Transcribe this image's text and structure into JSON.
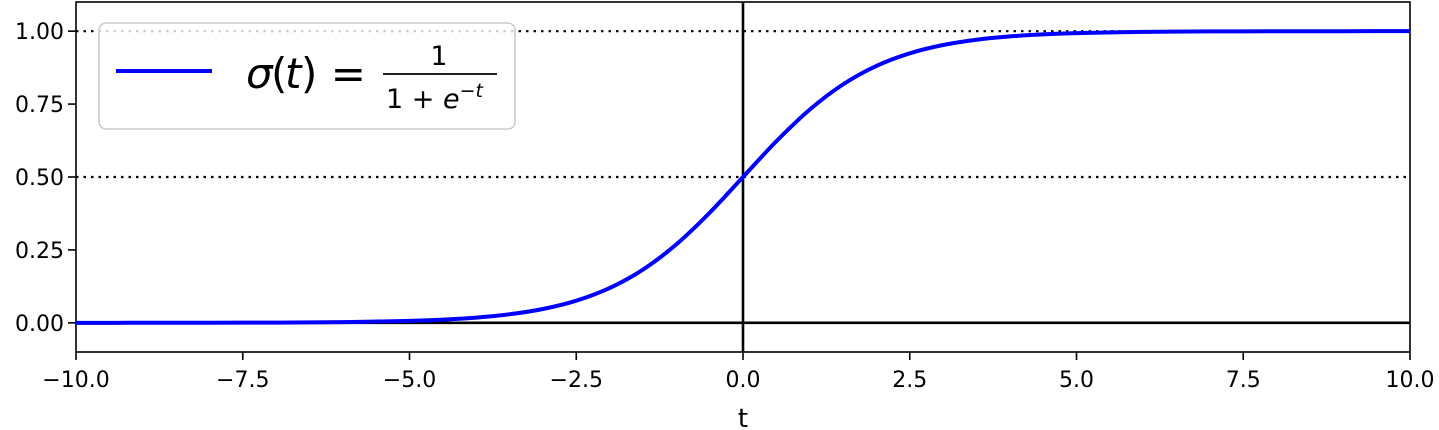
{
  "chart_data": {
    "type": "line",
    "title": "",
    "xlabel": "t",
    "ylabel": "",
    "xlim": [
      -10,
      10
    ],
    "ylim": [
      -0.1,
      1.1
    ],
    "x_ticks": [
      -10,
      -7.5,
      -5,
      -2.5,
      0,
      2.5,
      5,
      7.5,
      10
    ],
    "x_tick_labels": [
      "−10.0",
      "−7.5",
      "−5.0",
      "−2.5",
      "0.0",
      "2.5",
      "5.0",
      "7.5",
      "10.0"
    ],
    "y_ticks": [
      0,
      0.25,
      0.5,
      0.75,
      1.0
    ],
    "y_tick_labels": [
      "0.00",
      "0.25",
      "0.50",
      "0.75",
      "1.00"
    ],
    "grid": false,
    "legend_position": "top-left",
    "series": [
      {
        "name": "σ(t) = 1 / (1 + e^−t)",
        "color": "#0000ff",
        "style": "solid",
        "x": [
          -10,
          -9,
          -8,
          -7,
          -6,
          -5,
          -4.5,
          -4,
          -3.5,
          -3,
          -2.5,
          -2,
          -1.5,
          -1,
          -0.5,
          0,
          0.5,
          1,
          1.5,
          2,
          2.5,
          3,
          3.5,
          4,
          4.5,
          5,
          6,
          7,
          8,
          9,
          10
        ],
        "y": [
          0.0,
          0.0001,
          0.0003,
          0.0009,
          0.0025,
          0.0067,
          0.011,
          0.018,
          0.0293,
          0.0474,
          0.0759,
          0.1192,
          0.1824,
          0.2689,
          0.3775,
          0.5,
          0.6225,
          0.7311,
          0.8176,
          0.8808,
          0.9241,
          0.9526,
          0.9707,
          0.982,
          0.989,
          0.9933,
          0.9975,
          0.9991,
          0.9997,
          0.9999,
          1.0
        ]
      }
    ],
    "reference_lines": [
      {
        "orientation": "horizontal",
        "value": 0,
        "style": "solid",
        "color": "#000000"
      },
      {
        "orientation": "horizontal",
        "value": 0.5,
        "style": "dotted",
        "color": "#000000"
      },
      {
        "orientation": "horizontal",
        "value": 1,
        "style": "dotted",
        "color": "#000000"
      },
      {
        "orientation": "vertical",
        "value": 0,
        "style": "solid",
        "color": "#000000"
      }
    ]
  }
}
